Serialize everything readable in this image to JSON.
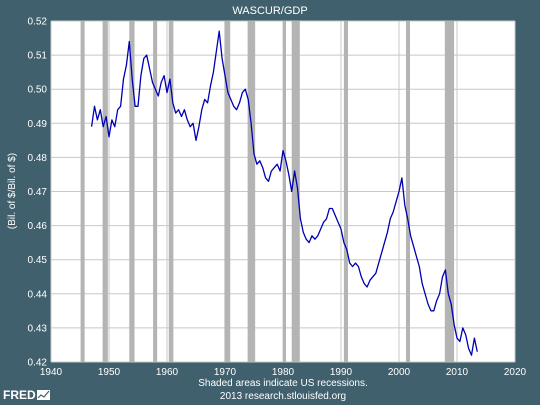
{
  "chart_data": {
    "type": "line",
    "title": "WASCUR/GDP",
    "ylabel": "(Bil. of $/Bil. of $)",
    "xlabel": "",
    "xlim": [
      1940,
      2020
    ],
    "ylim": [
      0.42,
      0.52
    ],
    "x_ticks": [
      "1940",
      "1950",
      "1960",
      "1970",
      "1980",
      "1990",
      "2000",
      "2010",
      "2020"
    ],
    "y_ticks": [
      "0.42",
      "0.43",
      "0.44",
      "0.45",
      "0.46",
      "0.47",
      "0.48",
      "0.49",
      "0.50",
      "0.51",
      "0.52"
    ],
    "grid": true,
    "line_color": "#0000b3",
    "band_color": "#b4b4b4",
    "recessions": [
      [
        1945.1,
        1945.8
      ],
      [
        1948.9,
        1949.8
      ],
      [
        1953.5,
        1954.4
      ],
      [
        1957.6,
        1958.3
      ],
      [
        1960.3,
        1961.1
      ],
      [
        1969.9,
        1970.9
      ],
      [
        1973.9,
        1975.2
      ],
      [
        1980.0,
        1980.5
      ],
      [
        1981.5,
        1982.9
      ],
      [
        1990.5,
        1991.2
      ],
      [
        2001.2,
        2001.9
      ],
      [
        2007.9,
        2009.5
      ]
    ],
    "series": [
      {
        "x": [
          1947.0,
          1947.5,
          1948.0,
          1948.5,
          1949.0,
          1949.5,
          1950.0,
          1950.5,
          1951.0,
          1951.5,
          1952.0,
          1952.5,
          1953.0,
          1953.5,
          1954.0,
          1954.5,
          1955.0,
          1955.5,
          1956.0,
          1956.5,
          1957.0,
          1957.5,
          1958.0,
          1958.5,
          1959.0,
          1959.5,
          1960.0,
          1960.5,
          1961.0,
          1961.5,
          1962.0,
          1962.5,
          1963.0,
          1963.5,
          1964.0,
          1964.5,
          1965.0,
          1965.5,
          1966.0,
          1966.5,
          1967.0,
          1967.5,
          1968.0,
          1968.5,
          1969.0,
          1969.5,
          1970.0,
          1970.5,
          1971.0,
          1971.5,
          1972.0,
          1972.5,
          1973.0,
          1973.5,
          1974.0,
          1974.5,
          1975.0,
          1975.5,
          1976.0,
          1976.5,
          1977.0,
          1977.5,
          1978.0,
          1978.5,
          1979.0,
          1979.5,
          1980.0,
          1980.5,
          1981.0,
          1981.5,
          1982.0,
          1982.5,
          1983.0,
          1983.5,
          1984.0,
          1984.5,
          1985.0,
          1985.5,
          1986.0,
          1986.5,
          1987.0,
          1987.5,
          1988.0,
          1988.5,
          1989.0,
          1989.5,
          1990.0,
          1990.5,
          1991.0,
          1991.5,
          1992.0,
          1992.5,
          1993.0,
          1993.5,
          1994.0,
          1994.5,
          1995.0,
          1995.5,
          1996.0,
          1996.5,
          1997.0,
          1997.5,
          1998.0,
          1998.5,
          1999.0,
          1999.5,
          2000.0,
          2000.5,
          2001.0,
          2001.5,
          2002.0,
          2002.5,
          2003.0,
          2003.5,
          2004.0,
          2004.5,
          2005.0,
          2005.5,
          2006.0,
          2006.5,
          2007.0,
          2007.5,
          2008.0,
          2008.5,
          2009.0,
          2009.5,
          2010.0,
          2010.5,
          2011.0,
          2011.5,
          2012.0,
          2012.5,
          2013.0,
          2013.5
        ],
        "values": [
          0.489,
          0.495,
          0.491,
          0.494,
          0.489,
          0.492,
          0.486,
          0.491,
          0.489,
          0.494,
          0.495,
          0.503,
          0.507,
          0.514,
          0.503,
          0.495,
          0.495,
          0.504,
          0.509,
          0.51,
          0.506,
          0.502,
          0.5,
          0.498,
          0.502,
          0.504,
          0.499,
          0.503,
          0.496,
          0.493,
          0.494,
          0.492,
          0.494,
          0.491,
          0.489,
          0.49,
          0.485,
          0.489,
          0.494,
          0.497,
          0.496,
          0.501,
          0.505,
          0.511,
          0.517,
          0.509,
          0.504,
          0.499,
          0.497,
          0.495,
          0.494,
          0.496,
          0.499,
          0.5,
          0.497,
          0.49,
          0.481,
          0.478,
          0.479,
          0.477,
          0.474,
          0.473,
          0.476,
          0.477,
          0.478,
          0.476,
          0.482,
          0.479,
          0.475,
          0.47,
          0.476,
          0.471,
          0.462,
          0.458,
          0.456,
          0.455,
          0.457,
          0.456,
          0.457,
          0.459,
          0.461,
          0.462,
          0.465,
          0.465,
          0.463,
          0.461,
          0.459,
          0.455,
          0.453,
          0.449,
          0.448,
          0.449,
          0.448,
          0.445,
          0.443,
          0.442,
          0.444,
          0.445,
          0.446,
          0.449,
          0.452,
          0.455,
          0.458,
          0.462,
          0.464,
          0.467,
          0.47,
          0.474,
          0.466,
          0.462,
          0.457,
          0.454,
          0.451,
          0.448,
          0.443,
          0.44,
          0.437,
          0.435,
          0.435,
          0.438,
          0.44,
          0.445,
          0.447,
          0.44,
          0.437,
          0.431,
          0.427,
          0.426,
          0.43,
          0.428,
          0.424,
          0.422,
          0.427,
          0.423
        ]
      }
    ]
  },
  "footer": {
    "line1": "Shaded areas indicate US recessions.",
    "line2": "2013 research.stlouisfed.org"
  },
  "logo": {
    "text": "FRED"
  }
}
